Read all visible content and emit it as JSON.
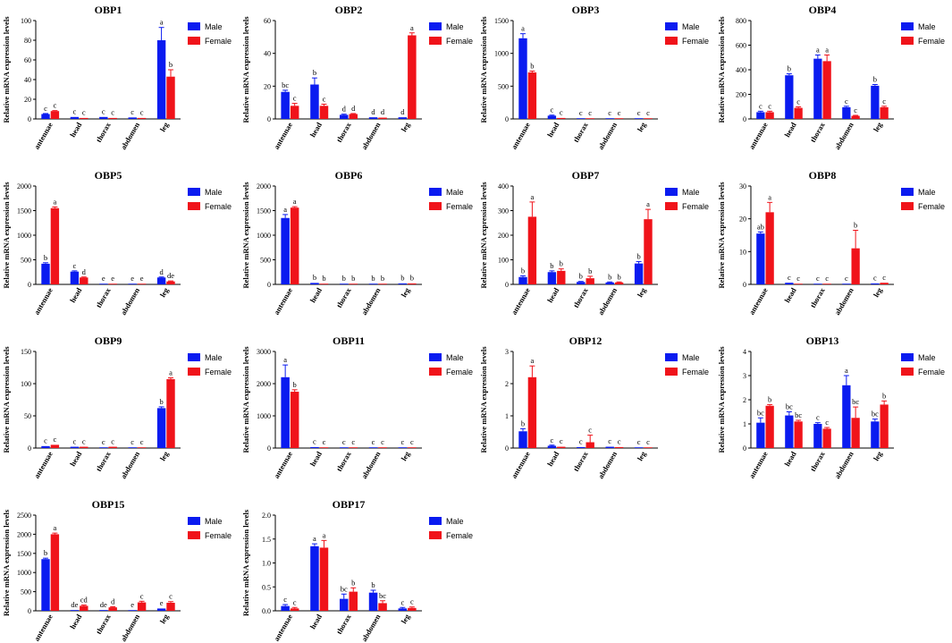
{
  "figure": {
    "ylabel": "Relative mRNA expression levels",
    "legend": [
      "Male",
      "Female"
    ],
    "colors": {
      "male": "#0a1bf0",
      "female": "#f0131a",
      "axis": "#000000"
    }
  },
  "chart_data": [
    {
      "type": "bar",
      "title": "OBP1",
      "categories": [
        "antennae",
        "head",
        "thorax",
        "abdomen",
        "leg"
      ],
      "ylim": [
        0,
        100
      ],
      "yticks": [
        "0",
        "20",
        "40",
        "60",
        "80",
        "100"
      ],
      "series": [
        {
          "name": "Male",
          "values": [
            5,
            2,
            2,
            1.5,
            80
          ],
          "errors": [
            0.5,
            0.3,
            0.3,
            0.2,
            13
          ],
          "letters": [
            "c",
            "c",
            "c",
            "c",
            "a"
          ]
        },
        {
          "name": "Female",
          "values": [
            8,
            1,
            1,
            1,
            43
          ],
          "errors": [
            0.5,
            0.2,
            0.2,
            0.2,
            7
          ],
          "letters": [
            "c",
            "c",
            "c",
            "c",
            "b"
          ]
        }
      ]
    },
    {
      "type": "bar",
      "title": "OBP2",
      "categories": [
        "antennae",
        "head",
        "thorax",
        "abdomen",
        "leg"
      ],
      "ylim": [
        0,
        60
      ],
      "yticks": [
        "0",
        "20",
        "40",
        "60"
      ],
      "series": [
        {
          "name": "Male",
          "values": [
            16.5,
            21,
            2.5,
            1,
            1
          ],
          "errors": [
            1,
            4,
            0.4,
            0.2,
            0.2
          ],
          "letters": [
            "bc",
            "b",
            "d",
            "d",
            "d"
          ]
        },
        {
          "name": "Female",
          "values": [
            8,
            8,
            3,
            0.8,
            51
          ],
          "errors": [
            1.5,
            1,
            0.3,
            0.2,
            1.5
          ],
          "letters": [
            "c",
            "c",
            "d",
            "d",
            "a"
          ]
        }
      ]
    },
    {
      "type": "bar",
      "title": "OBP3",
      "categories": [
        "antennae",
        "head",
        "thorax",
        "abdomen",
        "leg"
      ],
      "ylim": [
        0,
        1500
      ],
      "yticks": [
        "0",
        "500",
        "1000",
        "1500"
      ],
      "series": [
        {
          "name": "Male",
          "values": [
            1230,
            50,
            10,
            8,
            10
          ],
          "errors": [
            70,
            8,
            2,
            2,
            2
          ],
          "letters": [
            "a",
            "c",
            "c",
            "c",
            "c"
          ]
        },
        {
          "name": "Female",
          "values": [
            710,
            15,
            5,
            5,
            5
          ],
          "errors": [
            20,
            3,
            1,
            1,
            1
          ],
          "letters": [
            "b",
            "c",
            "c",
            "c",
            "c"
          ]
        }
      ]
    },
    {
      "type": "bar",
      "title": "OBP4",
      "categories": [
        "antennae",
        "head",
        "thorax",
        "abdomen",
        "leg"
      ],
      "ylim": [
        0,
        800
      ],
      "yticks": [
        "0",
        "200",
        "400",
        "600",
        "800"
      ],
      "series": [
        {
          "name": "Male",
          "values": [
            55,
            355,
            490,
            95,
            270
          ],
          "errors": [
            8,
            12,
            30,
            8,
            10
          ],
          "letters": [
            "c",
            "b",
            "a",
            "c",
            "b"
          ]
        },
        {
          "name": "Female",
          "values": [
            55,
            90,
            470,
            25,
            95
          ],
          "errors": [
            8,
            8,
            50,
            4,
            8
          ],
          "letters": [
            "c",
            "c",
            "a",
            "c",
            "c"
          ]
        }
      ]
    },
    {
      "type": "bar",
      "title": "OBP5",
      "categories": [
        "antennae",
        "head",
        "thorax",
        "abdomen",
        "leg"
      ],
      "ylim": [
        0,
        2000
      ],
      "yticks": [
        "0",
        "500",
        "1000",
        "1500",
        "2000"
      ],
      "series": [
        {
          "name": "Male",
          "values": [
            420,
            260,
            10,
            10,
            140
          ],
          "errors": [
            20,
            15,
            3,
            3,
            10
          ],
          "letters": [
            "b",
            "c",
            "e",
            "e",
            "d"
          ]
        },
        {
          "name": "Female",
          "values": [
            1550,
            140,
            10,
            10,
            60
          ],
          "errors": [
            25,
            10,
            3,
            3,
            10
          ],
          "letters": [
            "a",
            "d",
            "e",
            "e",
            "de"
          ]
        }
      ]
    },
    {
      "type": "bar",
      "title": "OBP6",
      "categories": [
        "antennae",
        "head",
        "thorax",
        "abdomen",
        "leg"
      ],
      "ylim": [
        0,
        2000
      ],
      "yticks": [
        "0",
        "500",
        "1000",
        "1500",
        "2000"
      ],
      "series": [
        {
          "name": "Male",
          "values": [
            1350,
            30,
            15,
            15,
            20
          ],
          "errors": [
            70,
            5,
            3,
            3,
            4
          ],
          "letters": [
            "a",
            "b",
            "b",
            "b",
            "b"
          ]
        },
        {
          "name": "Female",
          "values": [
            1560,
            15,
            10,
            10,
            20
          ],
          "errors": [
            20,
            3,
            3,
            3,
            4
          ],
          "letters": [
            "a",
            "b",
            "b",
            "b",
            "b"
          ]
        }
      ]
    },
    {
      "type": "bar",
      "title": "OBP7",
      "categories": [
        "antennae",
        "head",
        "thorax",
        "abdomen",
        "leg"
      ],
      "ylim": [
        0,
        400
      ],
      "yticks": [
        "0",
        "100",
        "200",
        "300",
        "400"
      ],
      "series": [
        {
          "name": "Male",
          "values": [
            30,
            50,
            10,
            8,
            85
          ],
          "errors": [
            5,
            5,
            2,
            2,
            8
          ],
          "letters": [
            "b",
            "b",
            "b",
            "b",
            "b"
          ]
        },
        {
          "name": "Female",
          "values": [
            275,
            55,
            25,
            8,
            265
          ],
          "errors": [
            60,
            8,
            8,
            2,
            40
          ],
          "letters": [
            "a",
            "b",
            "b",
            "b",
            "a"
          ]
        }
      ]
    },
    {
      "type": "bar",
      "title": "OBP8",
      "categories": [
        "antennae",
        "head",
        "thorax",
        "abdomen",
        "leg"
      ],
      "ylim": [
        0,
        30
      ],
      "yticks": [
        "0",
        "10",
        "20",
        "30"
      ],
      "series": [
        {
          "name": "Male",
          "values": [
            15.5,
            0.5,
            0.2,
            0.1,
            0.3
          ],
          "errors": [
            0.5,
            0.1,
            0.05,
            0.05,
            0.1
          ],
          "letters": [
            "ab",
            "c",
            "c",
            "c",
            "c"
          ]
        },
        {
          "name": "Female",
          "values": [
            22,
            0.1,
            0.1,
            11,
            0.5
          ],
          "errors": [
            3,
            0.05,
            0.05,
            5.5,
            0.1
          ],
          "letters": [
            "a",
            "c",
            "c",
            "b",
            "c"
          ]
        }
      ]
    },
    {
      "type": "bar",
      "title": "OBP9",
      "categories": [
        "antennae",
        "head",
        "thorax",
        "abdomen",
        "leg"
      ],
      "ylim": [
        0,
        150
      ],
      "yticks": [
        "0",
        "50",
        "100",
        "150"
      ],
      "series": [
        {
          "name": "Male",
          "values": [
            3,
            2,
            1,
            1,
            62
          ],
          "errors": [
            0.5,
            0.4,
            0.3,
            0.3,
            2
          ],
          "letters": [
            "c",
            "c",
            "c",
            "c",
            "b"
          ]
        },
        {
          "name": "Female",
          "values": [
            5,
            2,
            2,
            1,
            107
          ],
          "errors": [
            0.5,
            0.4,
            0.4,
            0.3,
            2
          ],
          "letters": [
            "c",
            "c",
            "c",
            "c",
            "a"
          ]
        }
      ]
    },
    {
      "type": "bar",
      "title": "OBP11",
      "categories": [
        "antennae",
        "head",
        "thorax",
        "abdomen",
        "leg"
      ],
      "ylim": [
        0,
        3000
      ],
      "yticks": [
        "0",
        "1000",
        "2000",
        "3000"
      ],
      "series": [
        {
          "name": "Male",
          "values": [
            2200,
            30,
            10,
            10,
            10
          ],
          "errors": [
            380,
            10,
            3,
            3,
            3
          ],
          "letters": [
            "a",
            "c",
            "c",
            "c",
            "c"
          ]
        },
        {
          "name": "Female",
          "values": [
            1750,
            10,
            5,
            5,
            5
          ],
          "errors": [
            60,
            3,
            2,
            2,
            2
          ],
          "letters": [
            "b",
            "c",
            "c",
            "c",
            "c"
          ]
        }
      ]
    },
    {
      "type": "bar",
      "title": "OBP12",
      "categories": [
        "antennae",
        "head",
        "thorax",
        "abdomen",
        "leg"
      ],
      "ylim": [
        0,
        3
      ],
      "yticks": [
        "0",
        "1",
        "2",
        "3"
      ],
      "series": [
        {
          "name": "Male",
          "values": [
            0.52,
            0.07,
            0.03,
            0.04,
            0.02
          ],
          "errors": [
            0.08,
            0.02,
            0.01,
            0.01,
            0.01
          ],
          "letters": [
            "b",
            "c",
            "c",
            "c",
            "c"
          ]
        },
        {
          "name": "Female",
          "values": [
            2.2,
            0.04,
            0.18,
            0.03,
            0.02
          ],
          "errors": [
            0.35,
            0.01,
            0.22,
            0.01,
            0.01
          ],
          "letters": [
            "a",
            "c",
            "c",
            "c",
            "c"
          ]
        }
      ]
    },
    {
      "type": "bar",
      "title": "OBP13",
      "categories": [
        "antennae",
        "head",
        "thorax",
        "abdomen",
        "leg"
      ],
      "ylim": [
        0,
        4
      ],
      "yticks": [
        "0",
        "1",
        "2",
        "3",
        "4"
      ],
      "series": [
        {
          "name": "Male",
          "values": [
            1.05,
            1.35,
            1.0,
            2.6,
            1.1
          ],
          "errors": [
            0.2,
            0.15,
            0.05,
            0.4,
            0.1
          ],
          "letters": [
            "bc",
            "bc",
            "c",
            "a",
            "bc"
          ]
        },
        {
          "name": "Female",
          "values": [
            1.75,
            1.1,
            0.8,
            1.25,
            1.8
          ],
          "errors": [
            0.05,
            0.05,
            0.05,
            0.45,
            0.15
          ],
          "letters": [
            "b",
            "bc",
            "c",
            "bc",
            "b"
          ]
        }
      ]
    },
    {
      "type": "bar",
      "title": "OBP15",
      "categories": [
        "antennae",
        "head",
        "thorax",
        "abdomen",
        "leg"
      ],
      "ylim": [
        0,
        2500
      ],
      "yticks": [
        "0",
        "500",
        "1000",
        "1500",
        "2000",
        "2500"
      ],
      "series": [
        {
          "name": "Male",
          "values": [
            1350,
            20,
            20,
            15,
            60
          ],
          "errors": [
            25,
            5,
            5,
            5,
            10
          ],
          "letters": [
            "b",
            "de",
            "de",
            "e",
            "e"
          ]
        },
        {
          "name": "Female",
          "values": [
            2000,
            130,
            90,
            220,
            210
          ],
          "errors": [
            30,
            20,
            15,
            30,
            30
          ],
          "letters": [
            "a",
            "cd",
            "d",
            "c",
            "c"
          ]
        }
      ]
    },
    {
      "type": "bar",
      "title": "OBP17",
      "categories": [
        "antennae",
        "head",
        "thorax",
        "abdomen",
        "leg"
      ],
      "ylim": [
        0,
        2.0
      ],
      "yticks": [
        "0.0",
        "0.5",
        "1.0",
        "1.5",
        "2.0"
      ],
      "series": [
        {
          "name": "Male",
          "values": [
            0.1,
            1.35,
            0.25,
            0.38,
            0.05
          ],
          "errors": [
            0.03,
            0.05,
            0.1,
            0.05,
            0.02
          ],
          "letters": [
            "c",
            "a",
            "bc",
            "b",
            "c"
          ]
        },
        {
          "name": "Female",
          "values": [
            0.05,
            1.32,
            0.4,
            0.16,
            0.06
          ],
          "errors": [
            0.02,
            0.15,
            0.08,
            0.05,
            0.02
          ],
          "letters": [
            "c",
            "a",
            "b",
            "bc",
            "c"
          ]
        }
      ]
    }
  ]
}
